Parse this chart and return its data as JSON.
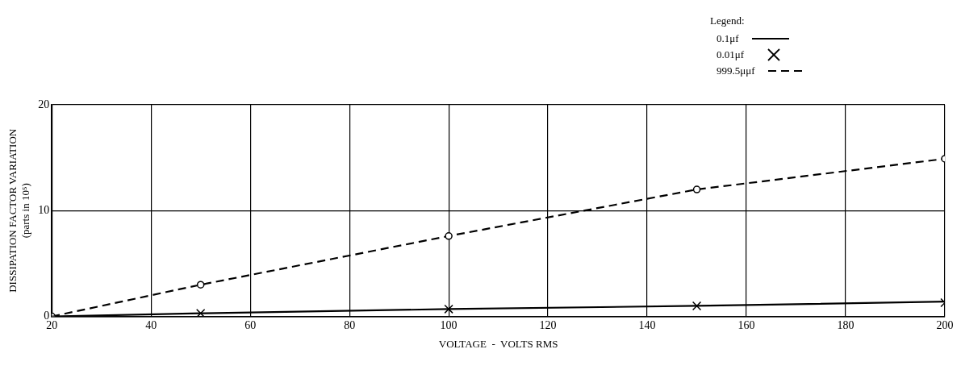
{
  "chart_data": {
    "type": "line",
    "xlabel": "VOLTAGE  -  VOLTS RMS",
    "ylabel": "DISSIPATION FACTOR VARIATION\n(parts in 10⁵)",
    "legend_title": "Legend:",
    "legend": "top right",
    "grid": true,
    "x": [
      20,
      50,
      100,
      150,
      200
    ],
    "xlim": [
      20,
      200
    ],
    "xticks": [
      20,
      40,
      60,
      80,
      100,
      120,
      140,
      160,
      180,
      200
    ],
    "ylim": [
      0,
      20
    ],
    "yticks": [
      0,
      10,
      20
    ],
    "series": [
      {
        "name": "0.1μf",
        "color": "#000000",
        "type": "line",
        "line_style": "solid",
        "marker": "none",
        "values": [
          0,
          0.3,
          0.7,
          1.0,
          1.4
        ]
      },
      {
        "name": "0.01μf",
        "color": "#000000",
        "type": "scatter",
        "marker": "cross",
        "values": [
          null,
          0.3,
          0.7,
          1.0,
          1.3
        ]
      },
      {
        "name": "999.5μμf",
        "color": "#000000",
        "type": "line",
        "line_style": "dashed",
        "marker": "circle",
        "values": [
          0,
          3.0,
          7.6,
          12.0,
          14.9
        ]
      }
    ]
  }
}
